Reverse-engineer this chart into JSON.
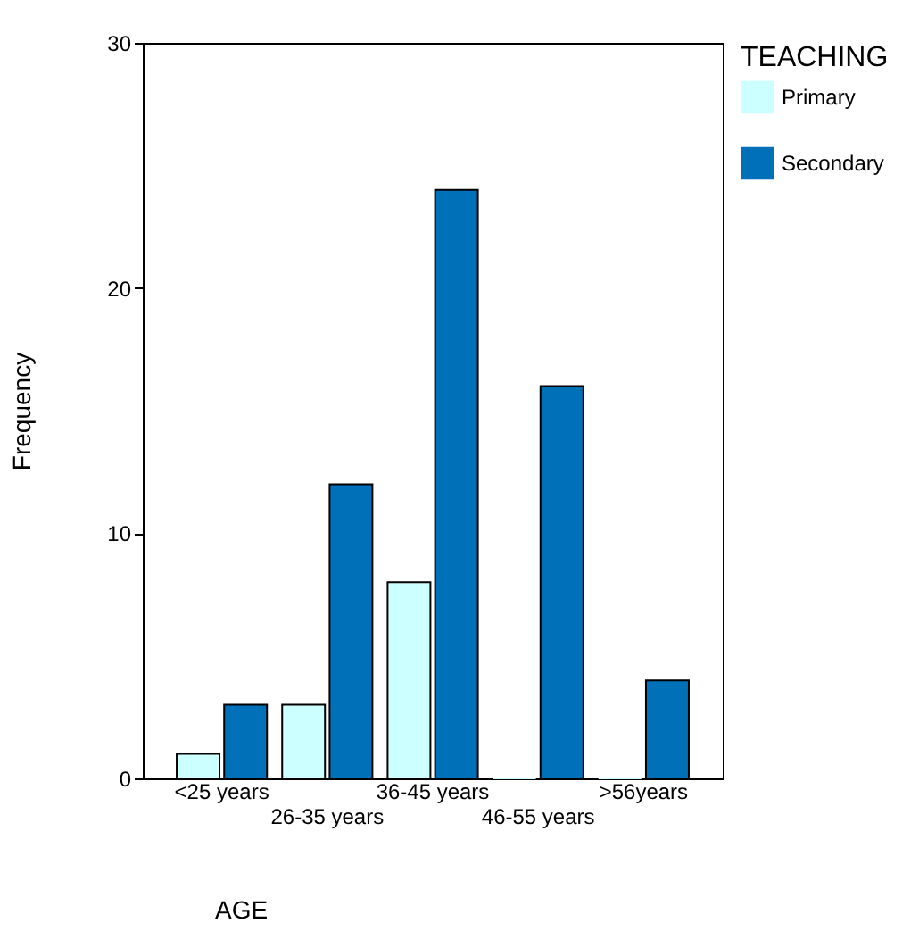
{
  "chart_data": {
    "type": "bar",
    "xlabel": "AGE",
    "ylabel": "Frequency",
    "legend_title": "TEACHING",
    "categories": [
      "<25 years",
      "26-35 years",
      "36-45 years",
      "46-55 years",
      ">56years"
    ],
    "series": [
      {
        "name": "Primary",
        "color": "#ccffff",
        "values": [
          1,
          3,
          8,
          0,
          0
        ]
      },
      {
        "name": "Secondary",
        "color": "#0070b8",
        "values": [
          3,
          12,
          24,
          16,
          4
        ]
      }
    ],
    "ylim": [
      0,
      30
    ],
    "yticks": [
      0,
      10,
      20,
      30
    ],
    "grid": false,
    "legend": "right"
  }
}
